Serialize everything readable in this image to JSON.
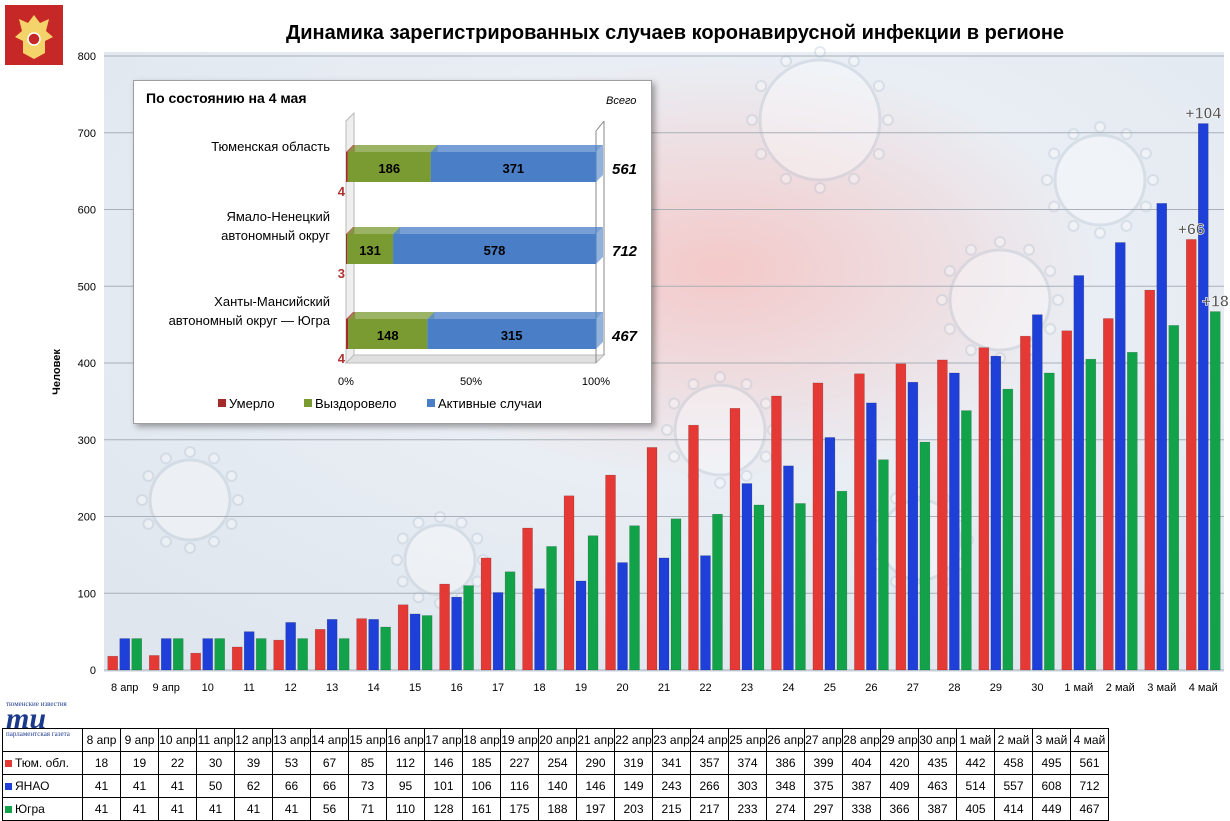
{
  "title": "Динамика зарегистрированных случаев коронавирусной инфекции  в регионе",
  "brand": {
    "line1": "тюменские известия",
    "logo": "ти",
    "line2": "парламентская газета"
  },
  "colors": {
    "tum": "#e53935",
    "yanao": "#1e3fd8",
    "yugra": "#12a34a",
    "died": "#a52a2a",
    "recovered": "#7a9a32",
    "active": "#4a7fc8"
  },
  "chart_data": [
    {
      "type": "bar",
      "ylabel": "Человек",
      "ylim": [
        0,
        800
      ],
      "yticks": [
        0,
        100,
        200,
        300,
        400,
        500,
        600,
        700,
        800
      ],
      "categories": [
        "8 апр",
        "9 апр",
        "10 апр",
        "11 апр",
        "12 апр",
        "13 апр",
        "14 апр",
        "15 апр",
        "16 апр",
        "17 апр",
        "18 апр",
        "19 апр",
        "20 апр",
        "21 апр",
        "22 апр",
        "23 апр",
        "24 апр",
        "25 апр",
        "26 апр",
        "27 апр",
        "28 апр",
        "29 апр",
        "30 апр",
        "1 май",
        "2 май",
        "3 май",
        "4 май"
      ],
      "tick_labels": [
        [
          "8 апр"
        ],
        [
          "9 апр"
        ],
        [
          "10",
          "апр"
        ],
        [
          "11",
          "апр"
        ],
        [
          "12",
          "апр"
        ],
        [
          "13",
          "апр"
        ],
        [
          "14",
          "апр"
        ],
        [
          "15",
          "апр"
        ],
        [
          "16",
          "апр"
        ],
        [
          "17",
          "апр"
        ],
        [
          "18",
          "апр"
        ],
        [
          "19",
          "апр"
        ],
        [
          "20",
          "апр"
        ],
        [
          "21",
          "апр"
        ],
        [
          "22",
          "апр"
        ],
        [
          "23",
          "апр"
        ],
        [
          "24",
          "апр"
        ],
        [
          "25",
          "апр"
        ],
        [
          "26",
          "апр"
        ],
        [
          "27",
          "апр"
        ],
        [
          "28",
          "апр"
        ],
        [
          "29",
          "апр"
        ],
        [
          "30",
          "апр"
        ],
        [
          "1 май"
        ],
        [
          "2 май"
        ],
        [
          "3 май"
        ],
        [
          "4 май"
        ]
      ],
      "series": [
        {
          "name": "Тюм. обл.",
          "values": [
            18,
            19,
            22,
            30,
            39,
            53,
            67,
            85,
            112,
            146,
            185,
            227,
            254,
            290,
            319,
            341,
            357,
            374,
            386,
            399,
            404,
            420,
            435,
            442,
            458,
            495,
            561
          ]
        },
        {
          "name": "ЯНАО",
          "values": [
            41,
            41,
            41,
            50,
            62,
            66,
            66,
            73,
            95,
            101,
            106,
            116,
            140,
            146,
            149,
            243,
            266,
            303,
            348,
            375,
            387,
            409,
            463,
            514,
            557,
            608,
            712
          ]
        },
        {
          "name": "Югра",
          "values": [
            41,
            41,
            41,
            41,
            41,
            41,
            56,
            71,
            110,
            128,
            161,
            175,
            188,
            197,
            203,
            215,
            217,
            233,
            274,
            297,
            338,
            366,
            387,
            405,
            414,
            449,
            467
          ]
        }
      ],
      "annotations": [
        {
          "series": "ЯНАО",
          "label": "+104"
        },
        {
          "series": "Тюм. обл.",
          "label": "+66"
        },
        {
          "series": "Югра",
          "label": "+18"
        }
      ]
    },
    {
      "type": "bar",
      "title": "По состоянию на 4 мая",
      "total_header": "Всего",
      "xlim": [
        0,
        100
      ],
      "xticks": [
        "0%",
        "50%",
        "100%"
      ],
      "regions": [
        {
          "name": [
            "Тюменская область"
          ],
          "died": 4,
          "recovered": 186,
          "active": 371,
          "total": "561"
        },
        {
          "name": [
            "Ямало-Ненецкий",
            "автономный округ"
          ],
          "died": 3,
          "recovered": 131,
          "active": 578,
          "total": "712"
        },
        {
          "name": [
            "Ханты-Мансийский",
            "автономный округ — Югра"
          ],
          "died": 4,
          "recovered": 148,
          "active": 315,
          "total": "467"
        }
      ],
      "legend": [
        "Умерло",
        "Выздоровело",
        "Активные случаи"
      ]
    }
  ]
}
